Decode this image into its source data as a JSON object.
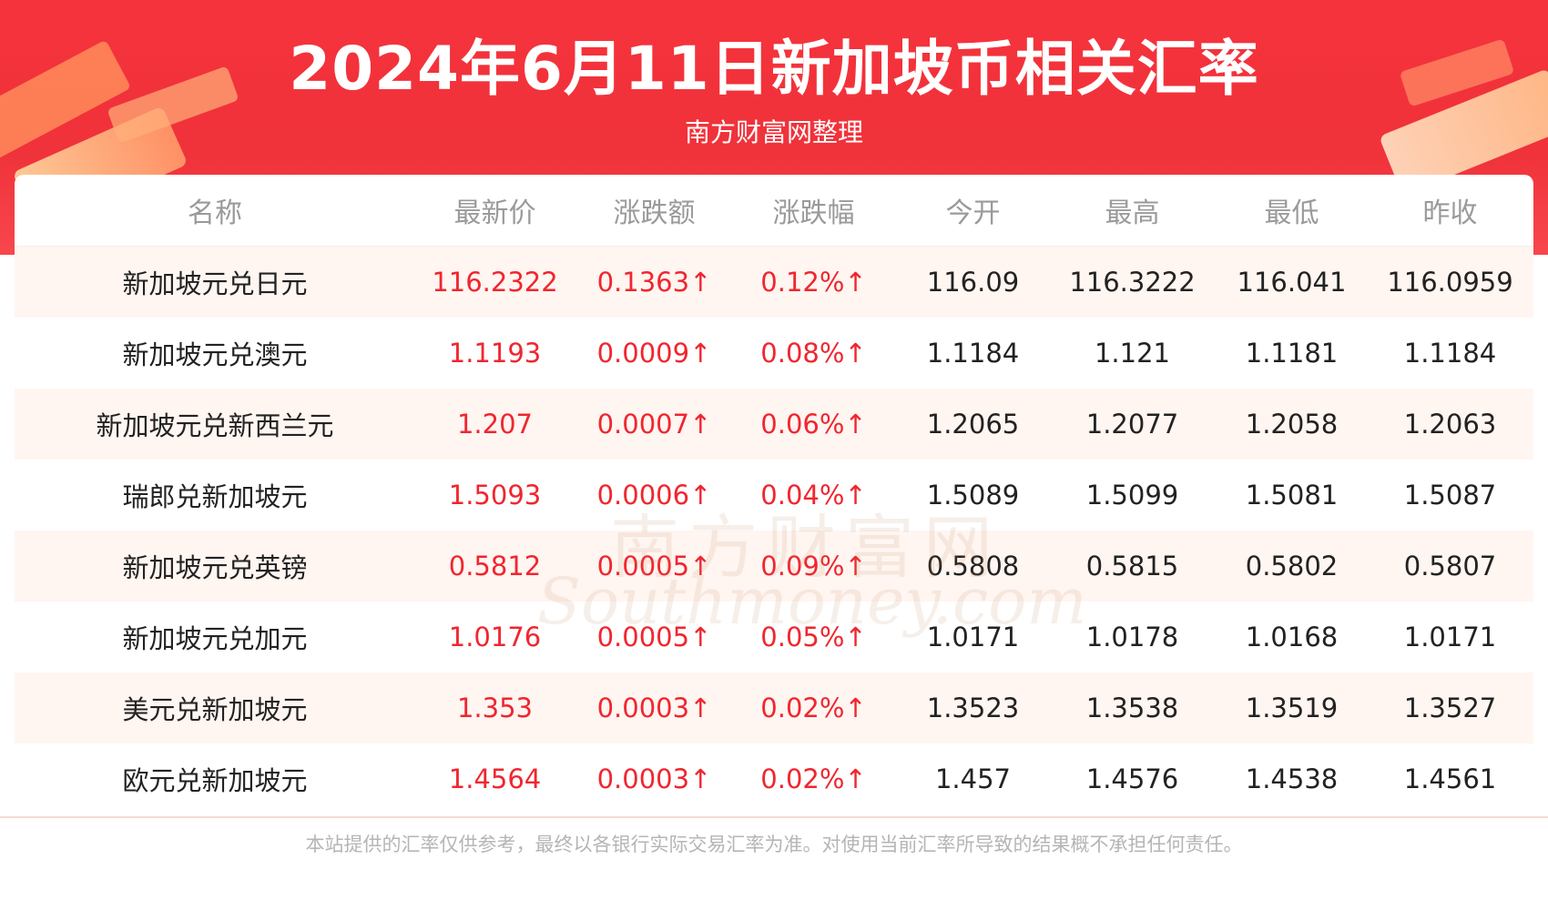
{
  "header": {
    "title": "2024年6月11日新加坡币相关汇率",
    "subtitle": "南方财富网整理"
  },
  "table": {
    "columns": [
      "名称",
      "最新价",
      "涨跌额",
      "涨跌幅",
      "今开",
      "最高",
      "最低",
      "昨收"
    ],
    "rows": [
      [
        "新加坡元兑日元",
        "116.2322",
        "0.1363↑",
        "0.12%↑",
        "116.09",
        "116.3222",
        "116.041",
        "116.0959"
      ],
      [
        "新加坡元兑澳元",
        "1.1193",
        "0.0009↑",
        "0.08%↑",
        "1.1184",
        "1.121",
        "1.1181",
        "1.1184"
      ],
      [
        "新加坡元兑新西兰元",
        "1.207",
        "0.0007↑",
        "0.06%↑",
        "1.2065",
        "1.2077",
        "1.2058",
        "1.2063"
      ],
      [
        "瑞郎兑新加坡元",
        "1.5093",
        "0.0006↑",
        "0.04%↑",
        "1.5089",
        "1.5099",
        "1.5081",
        "1.5087"
      ],
      [
        "新加坡元兑英镑",
        "0.5812",
        "0.0005↑",
        "0.09%↑",
        "0.5808",
        "0.5815",
        "0.5802",
        "0.5807"
      ],
      [
        "新加坡元兑加元",
        "1.0176",
        "0.0005↑",
        "0.05%↑",
        "1.0171",
        "1.0178",
        "1.0168",
        "1.0171"
      ],
      [
        "美元兑新加坡元",
        "1.353",
        "0.0003↑",
        "0.02%↑",
        "1.3523",
        "1.3538",
        "1.3519",
        "1.3527"
      ],
      [
        "欧元兑新加坡元",
        "1.4564",
        "0.0003↑",
        "0.02%↑",
        "1.457",
        "1.4576",
        "1.4538",
        "1.4561"
      ]
    ]
  },
  "watermark": {
    "cn": "南方财富网",
    "en": "Southmoney.com"
  },
  "footer": {
    "disclaimer": "本站提供的汇率仅供参考，最终以各银行实际交易汇率为准。对使用当前汇率所导致的结果概不承担任何责任。"
  },
  "colors": {
    "header_red": "#f0323a",
    "up_red": "#f0262f",
    "row_shade": "#fff5f1"
  }
}
